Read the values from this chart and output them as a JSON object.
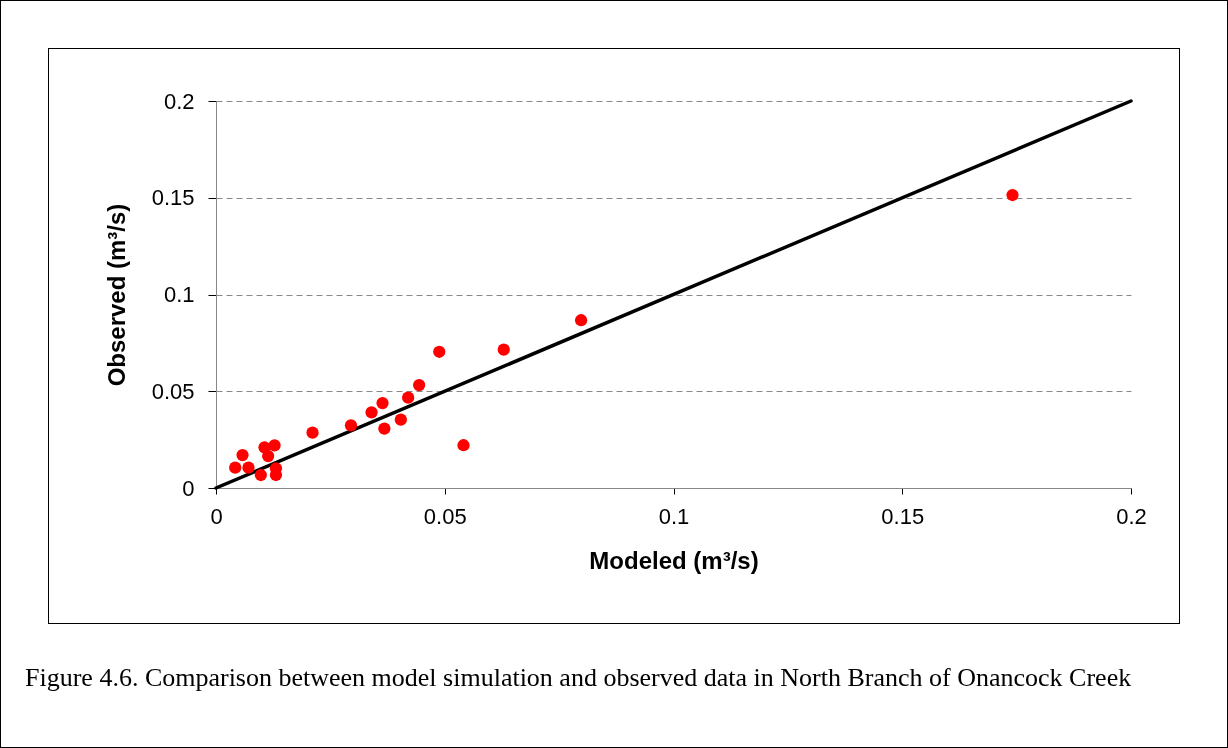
{
  "chart_data": {
    "type": "scatter",
    "xlabel": "Modeled (m³/s)",
    "ylabel": "Observed (m³/s)",
    "xlim": [
      0,
      0.2
    ],
    "xticks": [
      0,
      0.05,
      0.1,
      0.15,
      0.2
    ],
    "ylim": [
      0,
      0.2
    ],
    "yticks": [
      0,
      0.05,
      0.1,
      0.15,
      0.2
    ],
    "grid": "y",
    "series": [
      {
        "marker": "circle",
        "color": "#ff0000",
        "x": [
          0.0042,
          0.0058,
          0.0071,
          0.0098,
          0.0106,
          0.0114,
          0.0128,
          0.0131,
          0.0131,
          0.0211,
          0.0295,
          0.034,
          0.0364,
          0.0368,
          0.0404,
          0.042,
          0.0444,
          0.0488,
          0.0541,
          0.0629,
          0.0798,
          0.1741
        ],
        "values": [
          0.0105,
          0.017,
          0.0105,
          0.0067,
          0.021,
          0.0165,
          0.022,
          0.0102,
          0.0067,
          0.0286,
          0.0324,
          0.0391,
          0.0439,
          0.0307,
          0.0353,
          0.0467,
          0.0532,
          0.0704,
          0.0221,
          0.0715,
          0.0867,
          0.1514
        ]
      },
      {
        "type": "line",
        "color": "#000000",
        "x": [
          0,
          0.2
        ],
        "values": [
          0,
          0.2
        ]
      }
    ],
    "annotations": [
      "Figure 4.6. Comparison between model simulation and observed data in North Branch of Onancock Creek"
    ]
  }
}
